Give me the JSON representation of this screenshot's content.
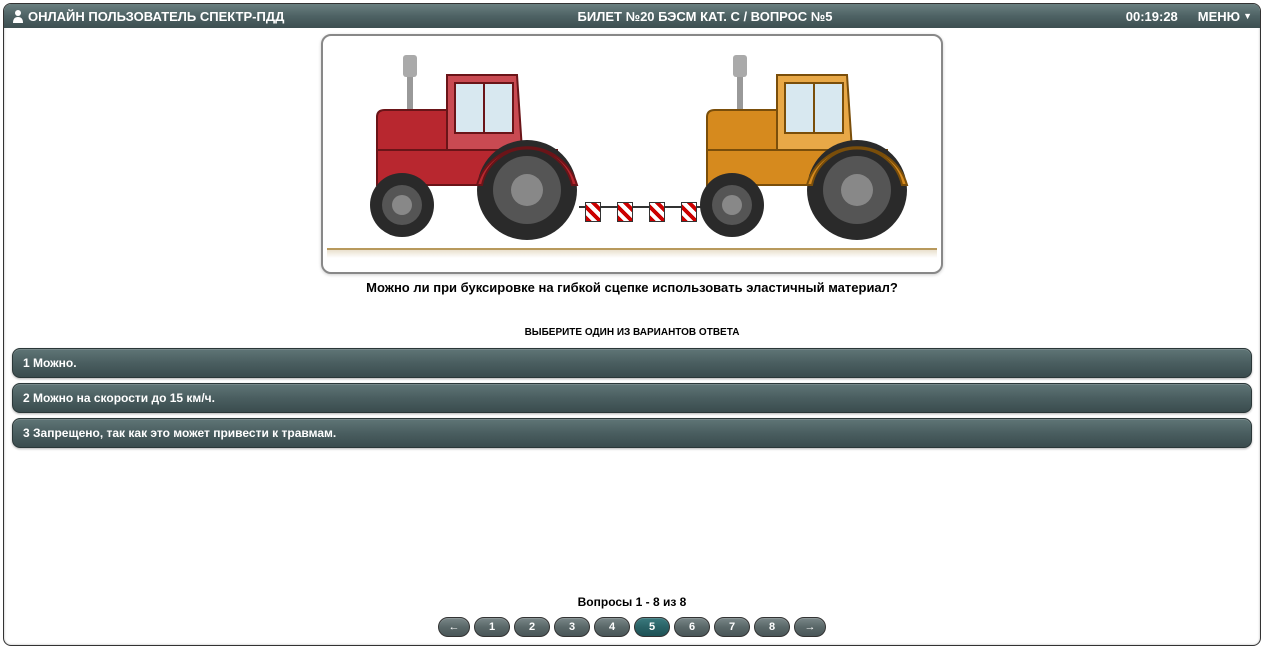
{
  "header": {
    "user_label": "ОНЛАЙН ПОЛЬЗОВАТЕЛЬ СПЕКТР-ПДД",
    "title": "БИЛЕТ №20 БЭСМ КАТ. C / ВОПРОС №5",
    "timer": "00:19:28",
    "menu_label": "МЕНЮ"
  },
  "question": {
    "text": "Можно ли при буксировке на гибкой сцепке использовать эластичный материал?",
    "instruction": "ВЫБЕРИТЕ ОДИН ИЗ ВАРИАНТОВ ОТВЕТА"
  },
  "answers": [
    {
      "num": "1",
      "text": "Можно."
    },
    {
      "num": "2",
      "text": "Можно на скорости до 15 км/ч."
    },
    {
      "num": "3",
      "text": "Запрещено, так как это может привести к травмам."
    }
  ],
  "pagination": {
    "label": "Вопросы 1 - 8 из 8",
    "prev": "←",
    "next": "→",
    "pages": [
      "1",
      "2",
      "3",
      "4",
      "5",
      "6",
      "7",
      "8"
    ],
    "active": 5
  },
  "illustration": {
    "tractor1_color": "#b8272f",
    "tractor1_cab_color": "#c94a52",
    "tractor2_color": "#d68a1e",
    "tractor2_cab_color": "#e8a847",
    "wheel_color": "#2a2a2a",
    "hub_color": "#888",
    "exhaust_color": "#999",
    "ground_color": "#b8995c",
    "flag_positions": [
      258,
      290,
      322,
      354,
      386
    ]
  },
  "colors": {
    "header_bg_top": "#6a7f80",
    "header_bg_bottom": "#3d4f51",
    "button_bg_top": "#5f7576",
    "button_bg_bottom": "#3a4c4e",
    "active_page_bg": "#2a6266",
    "text_white": "#ffffff",
    "text_black": "#000000"
  }
}
